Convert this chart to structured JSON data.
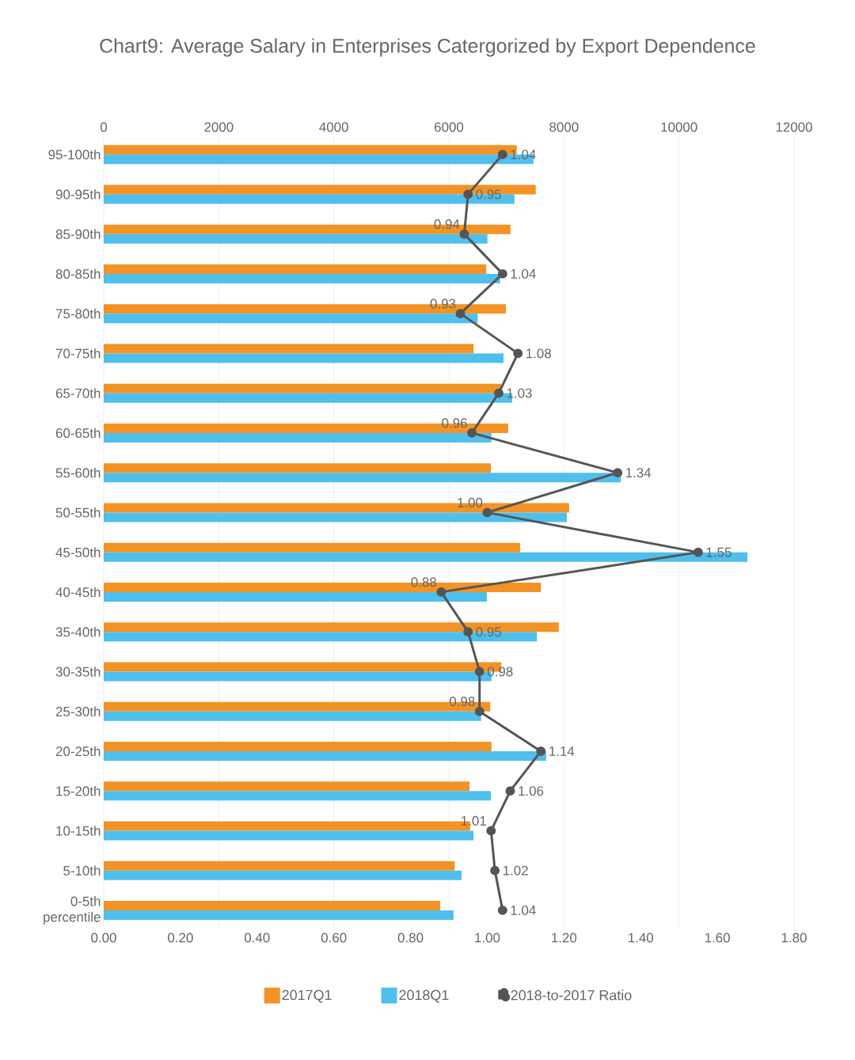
{
  "chart_data": {
    "type": "bar",
    "orientation": "horizontal",
    "title": "Chart9: Average Salary in Enterprises Catergorized by Export Dependence",
    "categories": [
      "95-100th",
      "90-95th",
      "85-90th",
      "80-85th",
      "75-80th",
      "70-75th",
      "65-70th",
      "60-65th",
      "55-60th",
      "50-55th",
      "45-50th",
      "40-45th",
      "35-40th",
      "30-35th",
      "25-30th",
      "20-25th",
      "15-20th",
      "10-15th",
      "5-10th",
      "0-5th percentile"
    ],
    "series": [
      {
        "name": "2017Q1",
        "color": "#f39325",
        "axis": "x2",
        "values": [
          7180,
          7510,
          7070,
          6650,
          6990,
          6430,
          6910,
          7030,
          6730,
          8090,
          7240,
          7600,
          7910,
          6910,
          6720,
          6740,
          6360,
          6370,
          6100,
          5850
        ]
      },
      {
        "name": "2018Q1",
        "color": "#4fbfec",
        "axis": "x2",
        "values": [
          7470,
          7140,
          6670,
          6890,
          6500,
          6950,
          7100,
          6740,
          8990,
          8050,
          11190,
          6660,
          7530,
          6740,
          6560,
          7690,
          6730,
          6430,
          6220,
          6080
        ]
      },
      {
        "name": "2018-to-2017 Ratio",
        "type": "line",
        "color": "#555555",
        "marker": "circle",
        "value_labels": [
          "1.04",
          "0.95",
          "0.94",
          "1.04",
          "0.93",
          "1.08",
          "1.03",
          "0.96",
          "1.34",
          "1.00",
          "1.55",
          "0.88",
          "0.95",
          "0.98",
          "0.98",
          "1.14",
          "1.06",
          "1.01",
          "1.02",
          "1.04"
        ],
        "values": [
          1.04,
          0.95,
          0.94,
          1.04,
          0.93,
          1.08,
          1.03,
          0.96,
          1.34,
          1.0,
          1.55,
          0.88,
          0.95,
          0.98,
          0.98,
          1.14,
          1.06,
          1.01,
          1.02,
          1.04
        ]
      }
    ],
    "xlim": [
      0,
      1.8
    ],
    "xticks": [
      {
        "value": 0,
        "label": "0.00"
      },
      {
        "value": 0.2,
        "label": "0.20"
      },
      {
        "value": 0.4,
        "label": "0.40"
      },
      {
        "value": 0.6,
        "label": "0.60"
      },
      {
        "value": 0.8,
        "label": "0.80"
      },
      {
        "value": 1,
        "label": "1.00"
      },
      {
        "value": 1.2,
        "label": "1.20"
      },
      {
        "value": 1.4,
        "label": "1.40"
      },
      {
        "value": 1.6,
        "label": "1.60"
      },
      {
        "value": 1.8,
        "label": "1.80"
      }
    ],
    "x2lim": [
      0,
      12000
    ],
    "x2ticks": [
      0,
      2000,
      4000,
      6000,
      8000,
      10000,
      12000
    ],
    "grid": "x",
    "legend": "bottom"
  }
}
